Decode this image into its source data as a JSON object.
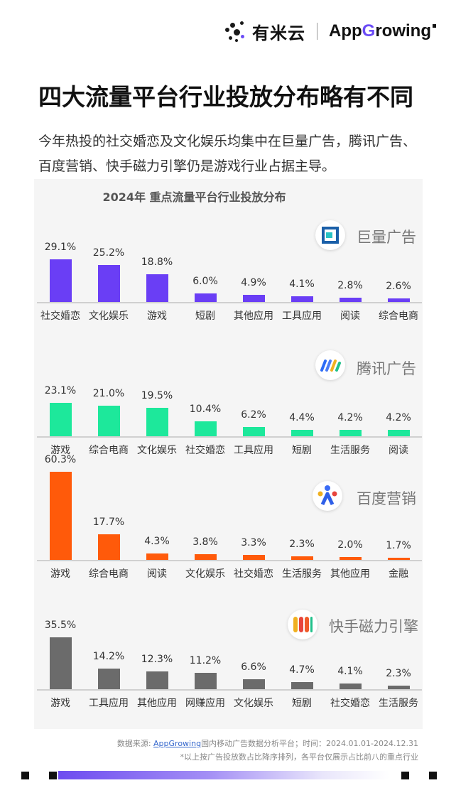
{
  "header": {
    "brand_cn": "有米云",
    "brand_en_pre": "App",
    "brand_en_g": "G",
    "brand_en_post": "rowing"
  },
  "title": "四大流量平台行业投放分布略有不同",
  "subtitle": "今年热投的社交婚恋及文化娱乐均集中在巨量广告，腾讯广告、百度营销、快手磁力引擎仍是游戏行业占据主导。",
  "chart_data": {
    "type": "bar",
    "title": "2024年 重点流量平台行业投放分布",
    "panels": [
      {
        "platform": "巨量广告",
        "icon": "juliang-icon",
        "color": "#6a3ef5",
        "categories": [
          "社交婚恋",
          "文化娱乐",
          "游戏",
          "短剧",
          "其他应用",
          "工具应用",
          "阅读",
          "综合电商"
        ],
        "values": [
          29.1,
          25.2,
          18.8,
          6.0,
          4.9,
          4.1,
          2.8,
          2.6
        ],
        "value_labels": [
          "29.1%",
          "25.2%",
          "18.8%",
          "6.0%",
          "4.9%",
          "4.1%",
          "2.8%",
          "2.6%"
        ]
      },
      {
        "platform": "腾讯广告",
        "icon": "tencent-ads-icon",
        "color": "#1de89b",
        "categories": [
          "游戏",
          "综合电商",
          "文化娱乐",
          "社交婚恋",
          "工具应用",
          "短剧",
          "生活服务",
          "阅读"
        ],
        "values": [
          23.1,
          21.0,
          19.5,
          10.4,
          6.2,
          4.4,
          4.2,
          4.2
        ],
        "value_labels": [
          "23.1%",
          "21.0%",
          "19.5%",
          "10.4%",
          "6.2%",
          "4.4%",
          "4.2%",
          "4.2%"
        ]
      },
      {
        "platform": "百度营销",
        "icon": "baidu-marketing-icon",
        "color": "#ff5a0a",
        "categories": [
          "游戏",
          "综合电商",
          "阅读",
          "文化娱乐",
          "社交婚恋",
          "生活服务",
          "其他应用",
          "金融"
        ],
        "values": [
          60.3,
          17.7,
          4.3,
          3.8,
          3.3,
          2.3,
          2.0,
          1.7
        ],
        "value_labels": [
          "60.3%",
          "17.7%",
          "4.3%",
          "3.8%",
          "3.3%",
          "2.3%",
          "2.0%",
          "1.7%"
        ]
      },
      {
        "platform": "快手磁力引擎",
        "icon": "kuaishou-icon",
        "color": "#6b6b6b",
        "categories": [
          "游戏",
          "工具应用",
          "其他应用",
          "网赚应用",
          "文化娱乐",
          "短剧",
          "社交婚恋",
          "生活服务"
        ],
        "values": [
          35.5,
          14.2,
          12.3,
          11.2,
          6.6,
          4.7,
          4.1,
          2.3
        ],
        "value_labels": [
          "35.5%",
          "14.2%",
          "12.3%",
          "11.2%",
          "6.6%",
          "4.7%",
          "4.1%",
          "2.3%"
        ]
      }
    ]
  },
  "footnote": {
    "source_prefix": "数据来源: ",
    "source_link": "AppGrowing",
    "source_suffix": "国内移动广告数据分析平台；时间：2024.01.01-2024.12.31",
    "note": "*以上按广告投放数占比降序排列，各平台仅展示占比前八的重点行业"
  }
}
